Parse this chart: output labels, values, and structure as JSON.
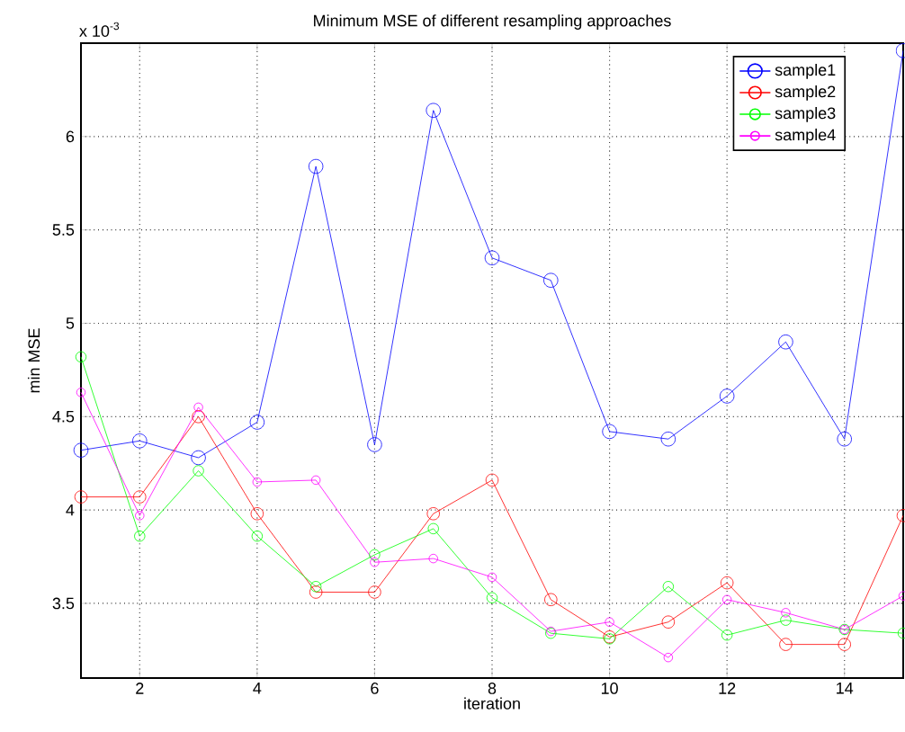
{
  "chart_data": {
    "type": "line",
    "title": "Minimum MSE of different resampling approaches",
    "xlabel": "iteration",
    "ylabel": "min MSE",
    "annotations": [
      "x 10$^{-3}$"
    ],
    "x": [
      1,
      2,
      3,
      4,
      5,
      6,
      7,
      8,
      9,
      10,
      11,
      12,
      13,
      14,
      15
    ],
    "series": [
      {
        "name": "sample1",
        "color": "#0000ff",
        "values": [
          4.32,
          4.37,
          4.28,
          4.47,
          5.84,
          4.35,
          6.14,
          5.35,
          5.23,
          4.42,
          4.38,
          4.61,
          4.9,
          4.38,
          6.46
        ]
      },
      {
        "name": "sample2",
        "color": "#ff0000",
        "values": [
          4.07,
          4.07,
          4.5,
          3.98,
          3.56,
          3.56,
          3.98,
          4.16,
          3.52,
          3.32,
          3.4,
          3.61,
          3.28,
          3.28,
          3.97
        ]
      },
      {
        "name": "sample3",
        "color": "#00ff00",
        "values": [
          4.82,
          3.86,
          4.21,
          3.86,
          3.59,
          3.76,
          3.9,
          3.53,
          3.34,
          3.31,
          3.59,
          3.33,
          3.41,
          3.36,
          3.34
        ]
      },
      {
        "name": "sample4",
        "color": "#ff00ff",
        "values": [
          4.63,
          3.97,
          4.55,
          4.15,
          4.16,
          3.72,
          3.74,
          3.64,
          3.35,
          3.4,
          3.21,
          3.52,
          3.45,
          3.36,
          3.54
        ]
      }
    ],
    "xlim": [
      1,
      15
    ],
    "ylim": [
      3.1,
      6.5
    ],
    "xticks": [
      2,
      4,
      6,
      8,
      10,
      12,
      14
    ],
    "yticks": [
      3.5,
      4,
      4.5,
      5,
      5.5,
      6
    ],
    "grid": true,
    "legend": "top right",
    "marker": "circle",
    "line_style": "solid"
  }
}
